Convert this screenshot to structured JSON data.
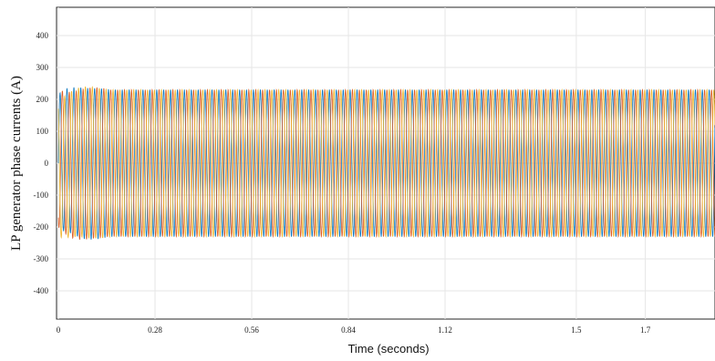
{
  "chart_data": {
    "type": "line",
    "title": "",
    "xlabel": "Time (seconds)",
    "ylabel": "LP generator phase currents (A)",
    "xlim": [
      0,
      2.0
    ],
    "ylim": [
      -450,
      450
    ],
    "x_ticks": [
      0,
      0.28,
      0.56,
      0.84,
      1.12,
      1.5,
      1.7
    ],
    "x_tick_labels": [
      "0",
      "0.28",
      "0.56",
      "0.84",
      "1.12",
      "1.5",
      "1.7"
    ],
    "y_ticks": [
      400,
      300,
      200,
      100,
      0,
      -100,
      -200,
      -300,
      -400
    ],
    "y_tick_labels": [
      "400",
      "300",
      "200",
      "100",
      "0",
      "-100",
      "-200",
      "-300",
      "-400"
    ],
    "grid": true,
    "legend": "none",
    "frequency_hz": 50,
    "steady_state_amplitude": 230,
    "startup_peak": 245,
    "startup_duration_s": 0.15,
    "series": [
      {
        "phase_deg": 0,
        "color": "#0072BD"
      },
      {
        "phase_deg": -120,
        "color": "#D95319"
      },
      {
        "phase_deg": 120,
        "color": "#EDB120"
      }
    ]
  }
}
